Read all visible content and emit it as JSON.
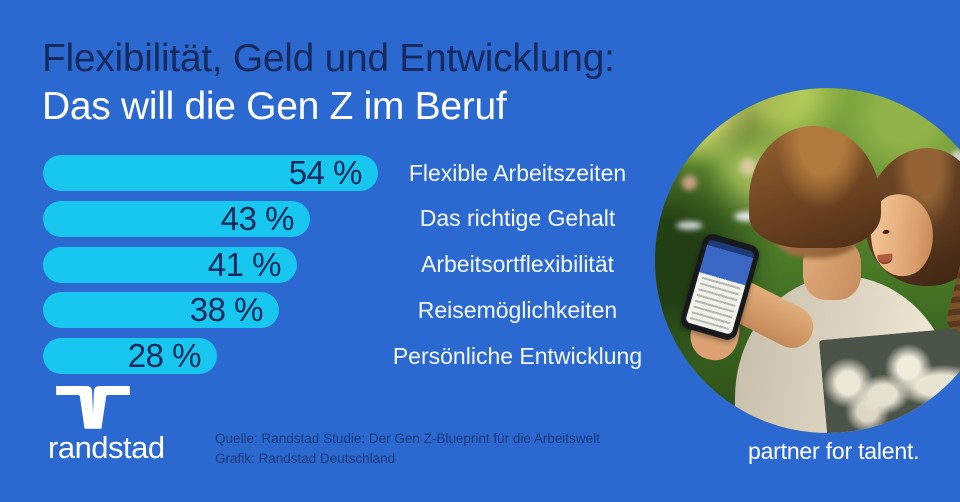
{
  "canvas": {
    "background": "#2b69d1"
  },
  "title": {
    "line1": "Flexibilität, Geld und Entwicklung:",
    "line2": "Das will die Gen Z im Beruf"
  },
  "chart_data": {
    "type": "bar",
    "orientation": "horizontal",
    "title": "Das will die Gen Z im Beruf",
    "categories": [
      "Flexible Arbeitszeiten",
      "Das richtige Gehalt",
      "Arbeitsortflexibilität",
      "Reisemöglichkeiten",
      "Persönliche Entwicklung"
    ],
    "values": [
      54,
      43,
      41,
      38,
      28
    ],
    "value_labels": [
      "54 %",
      "43 %",
      "41 %",
      "38 %",
      "28 %"
    ],
    "xlim": [
      0,
      60
    ],
    "grid": false,
    "legend": "none",
    "bar_color": "#18c7f0",
    "value_text_color": "#14285a",
    "category_label_color": "#f3f7fd"
  },
  "source": {
    "line1": "Quelle: Randstad Studie: Der Gen Z-Blueprint für die Arbeitswelt",
    "line2": "Grafik: Randstad Deutschland"
  },
  "brand": {
    "wordmark": "randstad",
    "tagline": "partner for talent."
  },
  "photo": {
    "description": "Zwei junge Menschen schauen im Park gemeinsam auf ein Smartphone"
  }
}
